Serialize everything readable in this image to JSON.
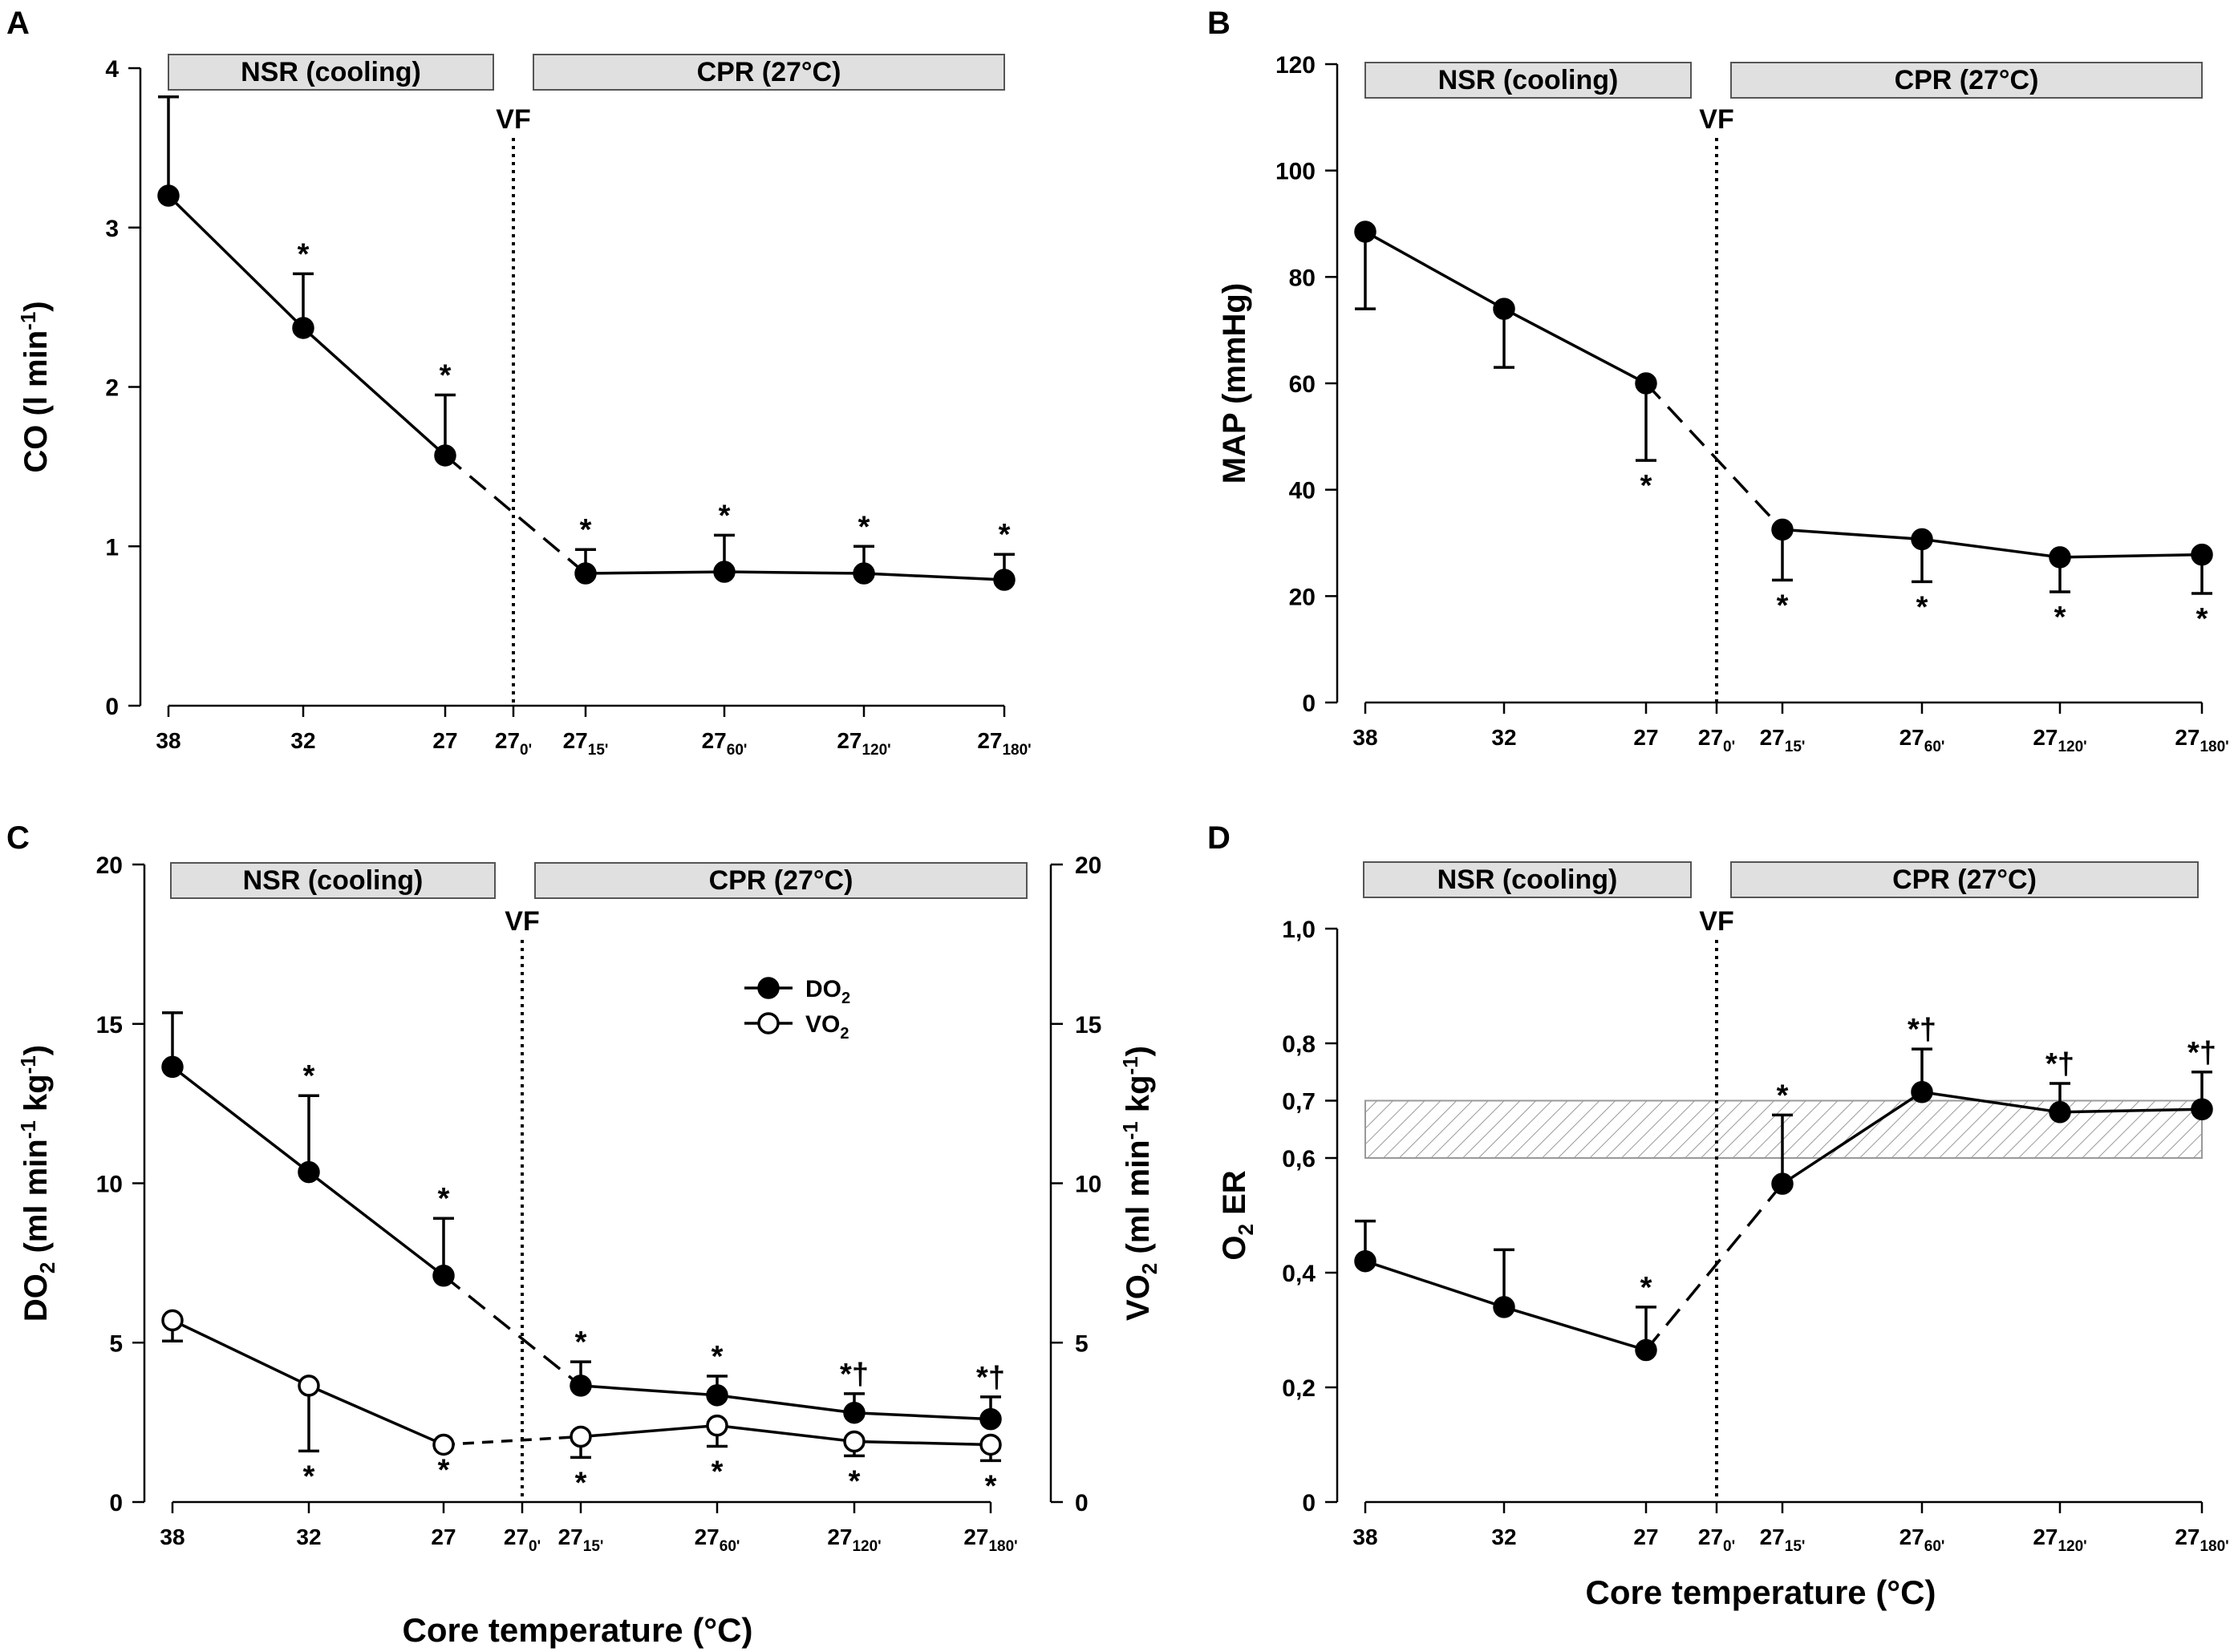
{
  "figure": {
    "categories": [
      "38",
      "32",
      "27",
      "27_0'",
      "27_15'",
      "27_60'",
      "27_120'",
      "27_180'"
    ],
    "x_axis_title": "Core temperature (°C)",
    "phase_labels": {
      "nsr": "NSR (cooling)",
      "cpr": "CPR (27°C)",
      "vf": "VF"
    },
    "colors": {
      "line": "#000000",
      "band_fill": "#e0e0e0",
      "band_stroke": "#555555",
      "hatch": "#999999"
    }
  },
  "chart_data": [
    {
      "panel": "A",
      "type": "line",
      "ylabel": "CO (l min^-1)",
      "ylim": [
        0,
        4
      ],
      "yticks": [
        "0",
        "1",
        "2",
        "3",
        "4"
      ],
      "categories": [
        "38",
        "32",
        "27",
        "27_0'",
        "27_15'",
        "27_60'",
        "27_120'",
        "27_180'"
      ],
      "series": [
        {
          "name": "CO",
          "filled": true,
          "points": [
            {
              "cat": 0,
              "value": 3.2,
              "err": 0.62,
              "err_dir": "up",
              "sig": "",
              "sig_pos": "above"
            },
            {
              "cat": 1,
              "value": 2.37,
              "err": 0.34,
              "err_dir": "up",
              "sig": "*",
              "sig_pos": "above"
            },
            {
              "cat": 2,
              "value": 1.57,
              "err": 0.38,
              "err_dir": "up",
              "sig": "*",
              "sig_pos": "above"
            },
            {
              "cat": 4,
              "value": 0.83,
              "err": 0.15,
              "err_dir": "up",
              "sig": "*",
              "sig_pos": "above"
            },
            {
              "cat": 5,
              "value": 0.84,
              "err": 0.23,
              "err_dir": "up",
              "sig": "*",
              "sig_pos": "above"
            },
            {
              "cat": 6,
              "value": 0.83,
              "err": 0.17,
              "err_dir": "up",
              "sig": "*",
              "sig_pos": "above"
            },
            {
              "cat": 7,
              "value": 0.79,
              "err": 0.16,
              "err_dir": "up",
              "sig": "*",
              "sig_pos": "above"
            }
          ]
        }
      ]
    },
    {
      "panel": "B",
      "type": "line",
      "ylabel": "MAP (mmHg)",
      "ylim": [
        0,
        120
      ],
      "yticks": [
        "0",
        "20",
        "40",
        "60",
        "80",
        "100",
        "120"
      ],
      "categories": [
        "38",
        "32",
        "27",
        "27_0'",
        "27_15'",
        "27_60'",
        "27_120'",
        "27_180'"
      ],
      "series": [
        {
          "name": "MAP",
          "filled": true,
          "points": [
            {
              "cat": 0,
              "value": 88.5,
              "err": 14.5,
              "err_dir": "down",
              "sig": "",
              "sig_pos": "below"
            },
            {
              "cat": 1,
              "value": 74,
              "err": 11,
              "err_dir": "down",
              "sig": "",
              "sig_pos": "below"
            },
            {
              "cat": 2,
              "value": 60,
              "err": 14.5,
              "err_dir": "down",
              "sig": "*",
              "sig_pos": "below"
            },
            {
              "cat": 4,
              "value": 32.5,
              "err": 9.5,
              "err_dir": "down",
              "sig": "*",
              "sig_pos": "below"
            },
            {
              "cat": 5,
              "value": 30.7,
              "err": 8,
              "err_dir": "down",
              "sig": "*",
              "sig_pos": "below"
            },
            {
              "cat": 6,
              "value": 27.3,
              "err": 6.5,
              "err_dir": "down",
              "sig": "*",
              "sig_pos": "below"
            },
            {
              "cat": 7,
              "value": 27.8,
              "err": 7.3,
              "err_dir": "down",
              "sig": "*",
              "sig_pos": "below"
            }
          ]
        }
      ]
    },
    {
      "panel": "C",
      "type": "line",
      "ylabel": "DO2 (ml min^-1 kg^-1)",
      "y2label": "VO2 (ml min^-1 kg^-1)",
      "ylim": [
        0,
        20
      ],
      "yticks": [
        "0",
        "5",
        "10",
        "15",
        "20"
      ],
      "categories": [
        "38",
        "32",
        "27",
        "27_0'",
        "27_15'",
        "27_60'",
        "27_120'",
        "27_180'"
      ],
      "legend": [
        {
          "name": "DO",
          "sub": "2",
          "filled": true
        },
        {
          "name": "VO",
          "sub": "2",
          "filled": false
        }
      ],
      "series": [
        {
          "name": "DO2",
          "filled": true,
          "points": [
            {
              "cat": 0,
              "value": 13.65,
              "err": 1.7,
              "err_dir": "up",
              "sig": "",
              "sig_pos": "above"
            },
            {
              "cat": 1,
              "value": 10.35,
              "err": 2.4,
              "err_dir": "up",
              "sig": "*",
              "sig_pos": "above"
            },
            {
              "cat": 2,
              "value": 7.1,
              "err": 1.8,
              "err_dir": "up",
              "sig": "*",
              "sig_pos": "above"
            },
            {
              "cat": 4,
              "value": 3.65,
              "err": 0.75,
              "err_dir": "up",
              "sig": "*",
              "sig_pos": "above"
            },
            {
              "cat": 5,
              "value": 3.35,
              "err": 0.6,
              "err_dir": "up",
              "sig": "*",
              "sig_pos": "above"
            },
            {
              "cat": 6,
              "value": 2.8,
              "err": 0.6,
              "err_dir": "up",
              "sig": "*†",
              "sig_pos": "above"
            },
            {
              "cat": 7,
              "value": 2.6,
              "err": 0.7,
              "err_dir": "up",
              "sig": "*†",
              "sig_pos": "above"
            }
          ]
        },
        {
          "name": "VO2",
          "filled": false,
          "points": [
            {
              "cat": 0,
              "value": 5.7,
              "err": 0.65,
              "err_dir": "down",
              "sig": "",
              "sig_pos": "below"
            },
            {
              "cat": 1,
              "value": 3.65,
              "err": 2.05,
              "err_dir": "down",
              "sig": "*",
              "sig_pos": "below"
            },
            {
              "cat": 2,
              "value": 1.8,
              "err": 0,
              "err_dir": "down",
              "sig": "*",
              "sig_pos": "below"
            },
            {
              "cat": 4,
              "value": 2.05,
              "err": 0.65,
              "err_dir": "down",
              "sig": "*",
              "sig_pos": "below"
            },
            {
              "cat": 5,
              "value": 2.4,
              "err": 0.65,
              "err_dir": "down",
              "sig": "*",
              "sig_pos": "below"
            },
            {
              "cat": 6,
              "value": 1.9,
              "err": 0.45,
              "err_dir": "down",
              "sig": "*",
              "sig_pos": "below"
            },
            {
              "cat": 7,
              "value": 1.8,
              "err": 0.5,
              "err_dir": "down",
              "sig": "*",
              "sig_pos": "below"
            }
          ]
        }
      ]
    },
    {
      "panel": "D",
      "type": "line",
      "ylabel": "O2 ER",
      "ylim": [
        0,
        1.0
      ],
      "yticks": [
        "0",
        "0,2",
        "0,4",
        "0,6",
        "0,7",
        "0,8",
        "1,0"
      ],
      "categories": [
        "38",
        "32",
        "27",
        "27_0'",
        "27_15'",
        "27_60'",
        "27_120'",
        "27_180'"
      ],
      "normal_range": [
        0.6,
        0.7
      ],
      "series": [
        {
          "name": "O2ER",
          "filled": true,
          "points": [
            {
              "cat": 0,
              "value": 0.42,
              "err": 0.07,
              "err_dir": "up",
              "sig": "",
              "sig_pos": "above"
            },
            {
              "cat": 1,
              "value": 0.34,
              "err": 0.1,
              "err_dir": "up",
              "sig": "",
              "sig_pos": "above"
            },
            {
              "cat": 2,
              "value": 0.265,
              "err": 0.075,
              "err_dir": "up",
              "sig": "*",
              "sig_pos": "above"
            },
            {
              "cat": 4,
              "value": 0.555,
              "err": 0.12,
              "err_dir": "up",
              "sig": "*",
              "sig_pos": "above"
            },
            {
              "cat": 5,
              "value": 0.715,
              "err": 0.075,
              "err_dir": "up",
              "sig": "*†",
              "sig_pos": "above"
            },
            {
              "cat": 6,
              "value": 0.68,
              "err": 0.05,
              "err_dir": "up",
              "sig": "*†",
              "sig_pos": "above"
            },
            {
              "cat": 7,
              "value": 0.685,
              "err": 0.065,
              "err_dir": "up",
              "sig": "*†",
              "sig_pos": "above"
            }
          ]
        }
      ]
    }
  ]
}
